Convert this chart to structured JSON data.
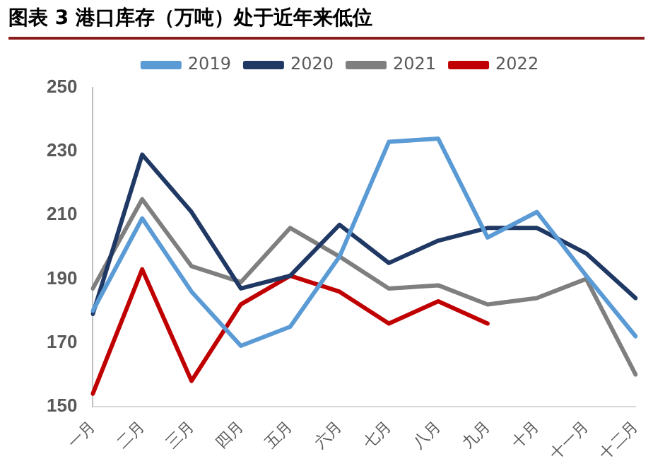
{
  "chart_data": {
    "type": "line",
    "title": "图表 3 港口库存（万吨）处于近年来低位",
    "categories": [
      "一月",
      "二月",
      "三月",
      "四月",
      "五月",
      "六月",
      "七月",
      "八月",
      "九月",
      "十月",
      "十一月",
      "十二月"
    ],
    "series": [
      {
        "name": "2019",
        "color": "#5b9bd5",
        "values": [
          180,
          209,
          186,
          169,
          175,
          197,
          233,
          234,
          203,
          211,
          191,
          172
        ]
      },
      {
        "name": "2020",
        "color": "#203864",
        "values": [
          179,
          229,
          211,
          187,
          191,
          207,
          195,
          202,
          206,
          206,
          198,
          184
        ]
      },
      {
        "name": "2021",
        "color": "#7f7f7f",
        "values": [
          187,
          215,
          194,
          189,
          206,
          197,
          187,
          188,
          182,
          184,
          190,
          160
        ]
      },
      {
        "name": "2022",
        "color": "#c00000",
        "values": [
          154,
          193,
          158,
          182,
          191,
          186,
          176,
          183,
          176,
          null,
          null,
          null
        ]
      }
    ],
    "ylim": [
      150,
      250
    ],
    "yticks": [
      150,
      170,
      190,
      210,
      230,
      250
    ],
    "grid": false,
    "legend": "top",
    "marker": "none",
    "line_style": "solid"
  }
}
